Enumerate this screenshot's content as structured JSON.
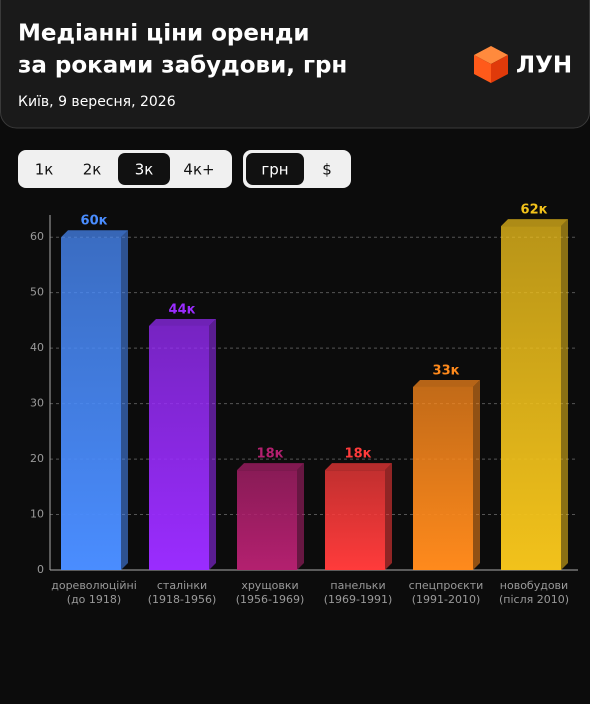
{
  "header": {
    "title": [
      "Медіанні ціни оренди",
      "за роками забудови, грн"
    ],
    "subtitle": "Київ, 9 вересня, 2026",
    "logo": "ЛУН"
  },
  "filters": {
    "rooms": [
      "1к",
      "2к",
      "3к",
      "4к+"
    ],
    "rooms_selected": 2,
    "currency": [
      "грн",
      "$"
    ],
    "currency_selected": 0
  },
  "chart_data": {
    "type": "bar",
    "categories": [
      [
        "дореволюційні",
        "(до 1918)"
      ],
      [
        "сталінки",
        "(1918-1956)"
      ],
      [
        "хрущовки",
        "(1956-1969)"
      ],
      [
        "панельки",
        "(1969-1991)"
      ],
      [
        "спецпроєкти",
        "(1991-2010)"
      ],
      [
        "новобудови",
        "(після 2010)"
      ]
    ],
    "values": [
      60,
      44,
      18,
      18,
      33,
      62
    ],
    "value_labels": [
      "60к",
      "44к",
      "18к",
      "18к",
      "33к",
      "62к"
    ],
    "colors": [
      "#4a8dff",
      "#9a2cff",
      "#b3206f",
      "#ff3b3b",
      "#ff8a1c",
      "#f2c21b"
    ],
    "ylim": [
      0,
      64
    ],
    "yticks": [
      0,
      10,
      20,
      30,
      40,
      50,
      60
    ],
    "grid": true
  }
}
